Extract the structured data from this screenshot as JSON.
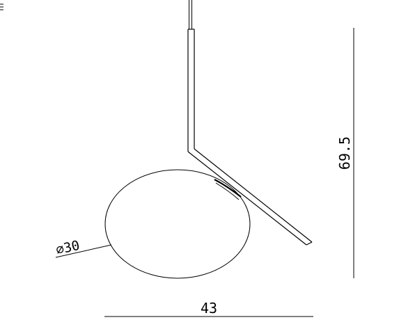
{
  "drawing": {
    "diameter_label": "⌀30",
    "width_label": "43",
    "height_label": "69.5",
    "line_color": "#000000"
  }
}
